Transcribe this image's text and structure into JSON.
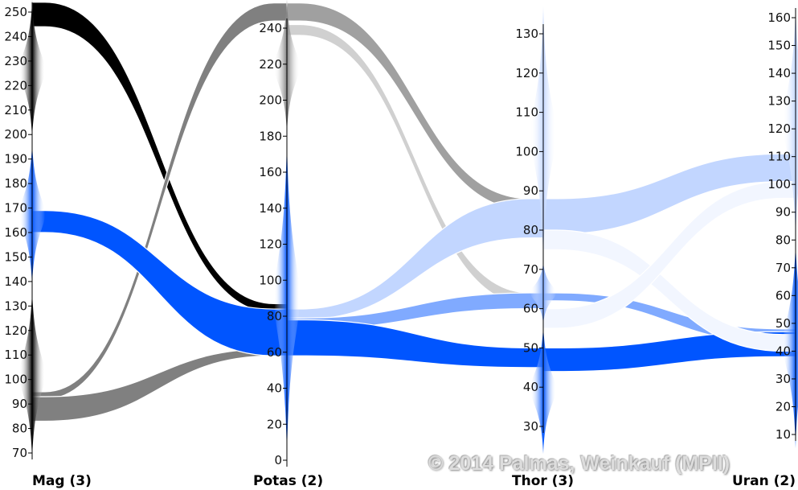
{
  "chart_data": {
    "type": "parallel-sets",
    "title": "",
    "axes": [
      {
        "label": "Mag (3)",
        "range": [
          70,
          250
        ],
        "ticks": [
          70,
          80,
          90,
          100,
          110,
          120,
          130,
          140,
          150,
          160,
          170,
          180,
          190,
          200,
          210,
          220,
          230,
          240,
          250
        ],
        "clusters": [
          {
            "range": [
              198,
              255
            ],
            "color": "#000000"
          },
          {
            "range": [
              138,
              197
            ],
            "color": "#0055ff"
          },
          {
            "range": [
              67,
              137
            ],
            "color": "#000000"
          }
        ]
      },
      {
        "label": "Potas (2)",
        "range": [
          0,
          240
        ],
        "ticks": [
          0,
          20,
          40,
          60,
          80,
          100,
          120,
          140,
          160,
          180,
          200,
          220,
          240
        ],
        "clusters": [
          {
            "range": [
              181,
              256
            ],
            "color": "#808080"
          },
          {
            "range": [
              0,
              180
            ],
            "color": "#0055ff"
          }
        ]
      },
      {
        "label": "Thor (3)",
        "range": [
          30,
          130
        ],
        "ticks": [
          30,
          40,
          50,
          60,
          70,
          80,
          90,
          100,
          110,
          120,
          130
        ],
        "clusters": [
          {
            "range": [
              72,
              137
            ],
            "color": "#c2d6ff"
          },
          {
            "range": [
              56,
              72
            ],
            "color": "#80aaff"
          },
          {
            "range": [
              23,
              56
            ],
            "color": "#0055ff"
          }
        ]
      },
      {
        "label": "Uran (2)",
        "range": [
          10,
          160
        ],
        "ticks": [
          10,
          20,
          30,
          40,
          50,
          60,
          70,
          80,
          90,
          100,
          110,
          120,
          130,
          140,
          150,
          160
        ],
        "clusters": [
          {
            "range": [
              80,
              165
            ],
            "color": "#c2d6ff"
          },
          {
            "range": [
              5,
              80
            ],
            "color": "#0055ff"
          }
        ]
      }
    ],
    "flows": [
      {
        "from": 0,
        "a": [
          244,
          254
        ],
        "b": [
          82,
          87
        ],
        "color": "#000000"
      },
      {
        "from": 0,
        "a": [
          92,
          95
        ],
        "b": [
          244,
          254
        ],
        "color": "#808080"
      },
      {
        "from": 0,
        "a": [
          83,
          93
        ],
        "b": [
          58,
          62
        ],
        "color": "#808080"
      },
      {
        "from": 0,
        "a": [
          160,
          169
        ],
        "b": [
          58,
          84
        ],
        "color": "#0055ff"
      },
      {
        "from": 1,
        "a": [
          244,
          254
        ],
        "b": [
          85,
          88
        ],
        "color": "#a0a0a0"
      },
      {
        "from": 1,
        "a": [
          236,
          242
        ],
        "b": [
          61,
          64
        ],
        "color": "#d0d0d0"
      },
      {
        "from": 1,
        "a": [
          78,
          84
        ],
        "b": [
          78,
          88
        ],
        "color": "#c2d6ff"
      },
      {
        "from": 1,
        "a": [
          73,
          79
        ],
        "b": [
          60,
          64
        ],
        "color": "#80aaff"
      },
      {
        "from": 1,
        "a": [
          58,
          78
        ],
        "b": [
          45,
          50
        ],
        "color": "#0055ff"
      },
      {
        "from": 2,
        "a": [
          79,
          88
        ],
        "b": [
          101,
          111
        ],
        "color": "#c2d6ff"
      },
      {
        "from": 2,
        "a": [
          62,
          64
        ],
        "b": [
          43,
          48
        ],
        "color": "#80aaff"
      },
      {
        "from": 2,
        "a": [
          44,
          50
        ],
        "b": [
          38,
          47
        ],
        "color": "#0055ff"
      },
      {
        "from": 2,
        "a": [
          75,
          80
        ],
        "b": [
          40,
          46
        ],
        "color": "#f2f6ff"
      },
      {
        "from": 2,
        "a": [
          55,
          60
        ],
        "b": [
          95,
          101
        ],
        "color": "#f2f6ff"
      }
    ]
  },
  "copyright": "© 2014 Palmas, Weinkauf (MPII)"
}
